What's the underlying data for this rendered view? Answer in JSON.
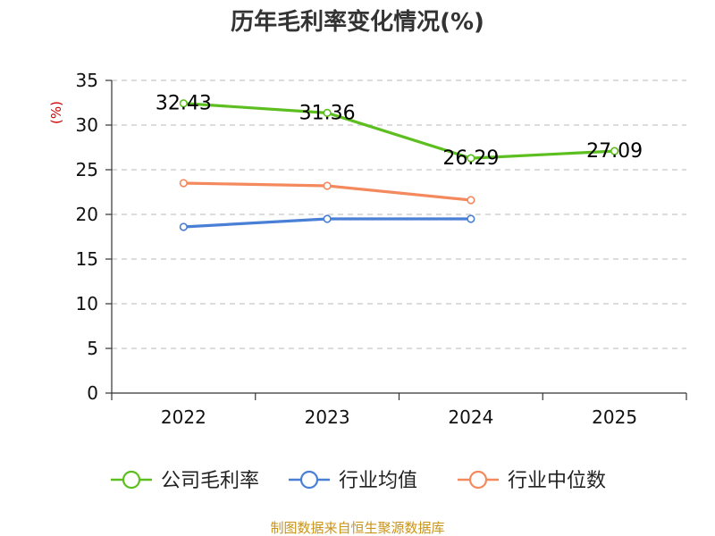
{
  "chart_data": {
    "type": "line",
    "title": "历年毛利率变化情况(%)",
    "ylabel": "(%)",
    "xlabel": "",
    "categories": [
      "2022",
      "2023",
      "2024",
      "2025"
    ],
    "ylim": [
      0,
      35
    ],
    "yticks": [
      0,
      5,
      10,
      15,
      20,
      25,
      30,
      35
    ],
    "grid": true,
    "legend_position": "bottom",
    "series": [
      {
        "name": "公司毛利率",
        "color": "#5cbf1f",
        "values": [
          32.43,
          31.36,
          26.29,
          27.09
        ],
        "labels": [
          "32.43",
          "31.36",
          "26.29",
          "27.09"
        ]
      },
      {
        "name": "行业均值",
        "color": "#4a7fd6",
        "values": [
          18.6,
          19.5,
          19.5,
          null
        ]
      },
      {
        "name": "行业中位数",
        "color": "#f4895e",
        "values": [
          23.5,
          23.2,
          21.6,
          null
        ]
      }
    ]
  },
  "source": "制图数据来自恒生聚源数据库"
}
